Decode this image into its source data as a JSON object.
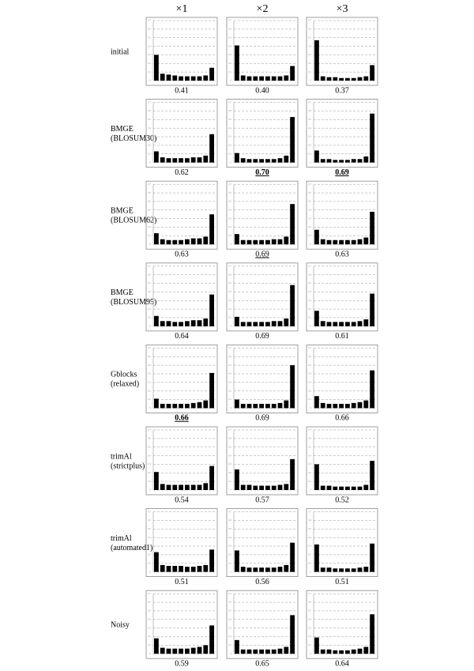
{
  "columns": [
    "×1",
    "×2",
    "×3"
  ],
  "rows": [
    [
      "initial"
    ],
    [
      "BMGE",
      "(BLOSUM30)"
    ],
    [
      "BMGE",
      "(BLOSUM62)"
    ],
    [
      "BMGE",
      "(BLOSUM95)"
    ],
    [
      "Gblocks",
      "(relaxed)"
    ],
    [
      "trimAl",
      "(strictplus)"
    ],
    [
      "trimAl",
      "(automated1)"
    ],
    [
      "Noisy"
    ]
  ],
  "chart_data": [
    {
      "type": "bar",
      "values": [
        0.3,
        0.08,
        0.07,
        0.06,
        0.05,
        0.05,
        0.05,
        0.05,
        0.06,
        0.15
      ],
      "score": "0.41",
      "color": "#000000",
      "ylim": [
        0,
        0.7
      ],
      "yticks": [
        0,
        0.1,
        0.2,
        0.3,
        0.4,
        0.5,
        0.6,
        0.7
      ],
      "grid": true
    },
    {
      "type": "bar",
      "values": [
        0.41,
        0.06,
        0.05,
        0.05,
        0.05,
        0.05,
        0.05,
        0.05,
        0.06,
        0.17
      ],
      "score": "0.40",
      "color": "#000000",
      "ylim": [
        0,
        0.7
      ],
      "yticks": [
        0,
        0.1,
        0.2,
        0.3,
        0.4,
        0.5,
        0.6,
        0.7
      ],
      "grid": true
    },
    {
      "type": "bar",
      "values": [
        0.47,
        0.05,
        0.04,
        0.04,
        0.03,
        0.03,
        0.03,
        0.04,
        0.05,
        0.18
      ],
      "score": "0.37",
      "color": "#000000",
      "ylim": [
        0,
        0.7
      ],
      "yticks": [
        0,
        0.1,
        0.2,
        0.3,
        0.4,
        0.5,
        0.6,
        0.7
      ],
      "grid": true
    },
    {
      "type": "bar",
      "values": [
        0.13,
        0.06,
        0.05,
        0.05,
        0.05,
        0.05,
        0.06,
        0.06,
        0.08,
        0.33
      ],
      "score": "0.62",
      "color": "#000000",
      "ylim": [
        0,
        0.7
      ],
      "yticks": [
        0,
        0.1,
        0.2,
        0.3,
        0.4,
        0.5,
        0.6,
        0.7
      ],
      "grid": true
    },
    {
      "type": "bar",
      "values": [
        0.11,
        0.05,
        0.04,
        0.04,
        0.04,
        0.04,
        0.04,
        0.05,
        0.08,
        0.53
      ],
      "score": "0.70",
      "emphasis": "bold-underline",
      "color": "#000000",
      "ylim": [
        0,
        0.7
      ],
      "yticks": [
        0,
        0.1,
        0.2,
        0.3,
        0.4,
        0.5,
        0.6,
        0.7
      ],
      "grid": true
    },
    {
      "type": "bar",
      "values": [
        0.14,
        0.04,
        0.04,
        0.03,
        0.03,
        0.03,
        0.04,
        0.04,
        0.07,
        0.57
      ],
      "score": "0.69",
      "emphasis": "bold-underline",
      "color": "#000000",
      "ylim": [
        0,
        0.7
      ],
      "yticks": [
        0,
        0.1,
        0.2,
        0.3,
        0.4,
        0.5,
        0.6,
        0.7
      ],
      "grid": true
    },
    {
      "type": "bar",
      "values": [
        0.13,
        0.06,
        0.05,
        0.05,
        0.05,
        0.06,
        0.07,
        0.07,
        0.09,
        0.35
      ],
      "score": "0.63",
      "color": "#000000",
      "ylim": [
        0,
        0.7
      ],
      "yticks": [
        0,
        0.1,
        0.2,
        0.3,
        0.4,
        0.5,
        0.6,
        0.7
      ],
      "grid": true
    },
    {
      "type": "bar",
      "values": [
        0.12,
        0.05,
        0.05,
        0.05,
        0.05,
        0.05,
        0.06,
        0.06,
        0.09,
        0.47
      ],
      "score": "0.69",
      "emphasis": "underline",
      "color": "#000000",
      "ylim": [
        0,
        0.7
      ],
      "yticks": [
        0,
        0.1,
        0.2,
        0.3,
        0.4,
        0.5,
        0.6,
        0.7
      ],
      "grid": true
    },
    {
      "type": "bar",
      "values": [
        0.17,
        0.06,
        0.05,
        0.05,
        0.05,
        0.05,
        0.05,
        0.06,
        0.08,
        0.38
      ],
      "score": "0.63",
      "color": "#000000",
      "ylim": [
        0,
        0.7
      ],
      "yticks": [
        0,
        0.1,
        0.2,
        0.3,
        0.4,
        0.5,
        0.6,
        0.7
      ],
      "grid": true
    },
    {
      "type": "bar",
      "values": [
        0.12,
        0.06,
        0.06,
        0.05,
        0.05,
        0.06,
        0.07,
        0.07,
        0.09,
        0.37
      ],
      "score": "0.64",
      "color": "#000000",
      "ylim": [
        0,
        0.7
      ],
      "yticks": [
        0,
        0.1,
        0.2,
        0.3,
        0.4,
        0.5,
        0.6,
        0.7
      ],
      "grid": true
    },
    {
      "type": "bar",
      "values": [
        0.11,
        0.05,
        0.05,
        0.05,
        0.05,
        0.05,
        0.06,
        0.06,
        0.09,
        0.48
      ],
      "score": "0.69",
      "color": "#000000",
      "ylim": [
        0,
        0.7
      ],
      "yticks": [
        0,
        0.1,
        0.2,
        0.3,
        0.4,
        0.5,
        0.6,
        0.7
      ],
      "grid": true
    },
    {
      "type": "bar",
      "values": [
        0.18,
        0.06,
        0.05,
        0.05,
        0.05,
        0.05,
        0.05,
        0.06,
        0.08,
        0.38
      ],
      "score": "0.61",
      "color": "#000000",
      "ylim": [
        0,
        0.7
      ],
      "yticks": [
        0,
        0.1,
        0.2,
        0.3,
        0.4,
        0.5,
        0.6,
        0.7
      ],
      "grid": true
    },
    {
      "type": "bar",
      "values": [
        0.11,
        0.05,
        0.05,
        0.05,
        0.05,
        0.05,
        0.06,
        0.07,
        0.09,
        0.41
      ],
      "score": "0.66",
      "emphasis": "bold-underline",
      "color": "#000000",
      "ylim": [
        0,
        0.7
      ],
      "yticks": [
        0,
        0.1,
        0.2,
        0.3,
        0.4,
        0.5,
        0.6,
        0.7
      ],
      "grid": true
    },
    {
      "type": "bar",
      "values": [
        0.1,
        0.05,
        0.05,
        0.05,
        0.05,
        0.05,
        0.05,
        0.06,
        0.09,
        0.5
      ],
      "score": "0.69",
      "color": "#000000",
      "ylim": [
        0,
        0.7
      ],
      "yticks": [
        0,
        0.1,
        0.2,
        0.3,
        0.4,
        0.5,
        0.6,
        0.7
      ],
      "grid": true
    },
    {
      "type": "bar",
      "values": [
        0.14,
        0.06,
        0.05,
        0.05,
        0.05,
        0.05,
        0.06,
        0.07,
        0.09,
        0.44
      ],
      "score": "0.66",
      "color": "#000000",
      "ylim": [
        0,
        0.7
      ],
      "yticks": [
        0,
        0.1,
        0.2,
        0.3,
        0.4,
        0.5,
        0.6,
        0.7
      ],
      "grid": true
    },
    {
      "type": "bar",
      "values": [
        0.21,
        0.07,
        0.06,
        0.06,
        0.06,
        0.06,
        0.06,
        0.06,
        0.08,
        0.28
      ],
      "score": "0.54",
      "color": "#000000",
      "ylim": [
        0,
        0.7
      ],
      "yticks": [
        0,
        0.1,
        0.2,
        0.3,
        0.4,
        0.5,
        0.6,
        0.7
      ],
      "grid": true
    },
    {
      "type": "bar",
      "values": [
        0.24,
        0.06,
        0.06,
        0.05,
        0.05,
        0.05,
        0.05,
        0.06,
        0.07,
        0.36
      ],
      "score": "0.57",
      "color": "#000000",
      "ylim": [
        0,
        0.7
      ],
      "yticks": [
        0,
        0.1,
        0.2,
        0.3,
        0.4,
        0.5,
        0.6,
        0.7
      ],
      "grid": true
    },
    {
      "type": "bar",
      "values": [
        0.3,
        0.05,
        0.05,
        0.04,
        0.04,
        0.04,
        0.04,
        0.04,
        0.06,
        0.34
      ],
      "score": "0.52",
      "color": "#000000",
      "ylim": [
        0,
        0.7
      ],
      "yticks": [
        0,
        0.1,
        0.2,
        0.3,
        0.4,
        0.5,
        0.6,
        0.7
      ],
      "grid": true
    },
    {
      "type": "bar",
      "values": [
        0.23,
        0.08,
        0.07,
        0.07,
        0.07,
        0.06,
        0.06,
        0.07,
        0.08,
        0.26
      ],
      "score": "0.51",
      "color": "#000000",
      "ylim": [
        0,
        0.7
      ],
      "yticks": [
        0,
        0.1,
        0.2,
        0.3,
        0.4,
        0.5,
        0.6,
        0.7
      ],
      "grid": true
    },
    {
      "type": "bar",
      "values": [
        0.25,
        0.06,
        0.05,
        0.05,
        0.05,
        0.05,
        0.05,
        0.06,
        0.08,
        0.34
      ],
      "score": "0.56",
      "color": "#000000",
      "ylim": [
        0,
        0.7
      ],
      "yticks": [
        0,
        0.1,
        0.2,
        0.3,
        0.4,
        0.5,
        0.6,
        0.7
      ],
      "grid": true
    },
    {
      "type": "bar",
      "values": [
        0.32,
        0.05,
        0.05,
        0.04,
        0.04,
        0.04,
        0.04,
        0.05,
        0.06,
        0.33
      ],
      "score": "0.51",
      "color": "#000000",
      "ylim": [
        0,
        0.7
      ],
      "yticks": [
        0,
        0.1,
        0.2,
        0.3,
        0.4,
        0.5,
        0.6,
        0.7
      ],
      "grid": true
    },
    {
      "type": "bar",
      "values": [
        0.18,
        0.07,
        0.06,
        0.06,
        0.06,
        0.06,
        0.07,
        0.08,
        0.1,
        0.33
      ],
      "score": "0.59",
      "color": "#000000",
      "ylim": [
        0,
        0.7
      ],
      "yticks": [
        0,
        0.1,
        0.2,
        0.3,
        0.4,
        0.5,
        0.6,
        0.7
      ],
      "grid": true
    },
    {
      "type": "bar",
      "values": [
        0.16,
        0.05,
        0.05,
        0.05,
        0.05,
        0.05,
        0.05,
        0.06,
        0.08,
        0.45
      ],
      "score": "0.65",
      "color": "#000000",
      "ylim": [
        0,
        0.7
      ],
      "yticks": [
        0,
        0.1,
        0.2,
        0.3,
        0.4,
        0.5,
        0.6,
        0.7
      ],
      "grid": true
    },
    {
      "type": "bar",
      "values": [
        0.19,
        0.05,
        0.05,
        0.04,
        0.04,
        0.04,
        0.05,
        0.06,
        0.08,
        0.46
      ],
      "score": "0.64",
      "color": "#000000",
      "ylim": [
        0,
        0.7
      ],
      "yticks": [
        0,
        0.1,
        0.2,
        0.3,
        0.4,
        0.5,
        0.6,
        0.7
      ],
      "grid": true
    }
  ]
}
